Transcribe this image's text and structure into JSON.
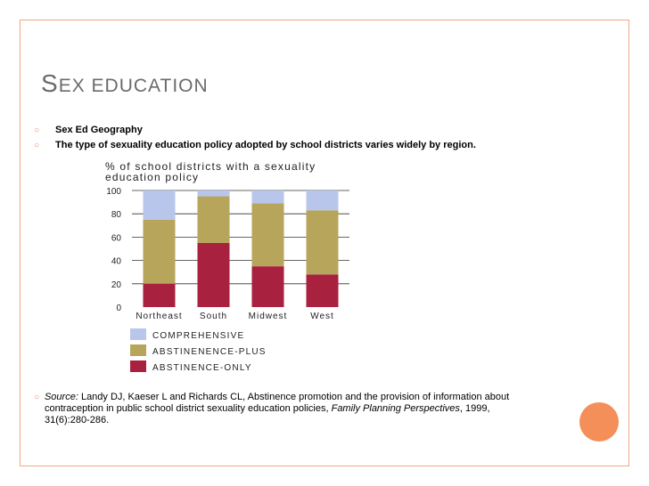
{
  "slide": {
    "title_first": "S",
    "title_rest_1": "EX ",
    "title_rest_2": "EDUCATION",
    "bullets": [
      "Sex Ed Geography",
      "The type of sexuality education policy adopted by school districts varies widely by region."
    ],
    "source_label": "Source:",
    "source_text_1": " Landy DJ, Kaeser L and Richards CL, Abstinence promotion and the provision of information about contraception in public school district sexuality education policies, ",
    "source_journal": "Family Planning Perspectives",
    "source_text_2": ", 1999, 31(6):280-286."
  },
  "colors": {
    "comprehensive": "#b8c6ec",
    "abstinence_plus": "#b7a55c",
    "abstinence_only": "#a8213f",
    "accent": "#f0a88a",
    "circle": "#f58f59"
  },
  "chart_data": {
    "type": "bar",
    "stacked": true,
    "title_line1": "% of school districts with a sexuality",
    "title_line2": "education policy",
    "categories": [
      "Northeast",
      "South",
      "Midwest",
      "West"
    ],
    "yticks": [
      0,
      20,
      40,
      60,
      80,
      100
    ],
    "ylim": [
      0,
      100
    ],
    "series": [
      {
        "name": "ABSTINENCE-ONLY",
        "key": "abstinence_only",
        "values": [
          20,
          55,
          35,
          28
        ]
      },
      {
        "name": "ABSTINENENCE-PLUS",
        "key": "abstinence_plus",
        "values": [
          55,
          40,
          54,
          55
        ]
      },
      {
        "name": "COMPREHENSIVE",
        "key": "comprehensive",
        "values": [
          25,
          5,
          11,
          17
        ]
      }
    ],
    "legend_order": [
      "comprehensive",
      "abstinence_plus",
      "abstinence_only"
    ],
    "grid": true,
    "legend_position": "bottom"
  }
}
